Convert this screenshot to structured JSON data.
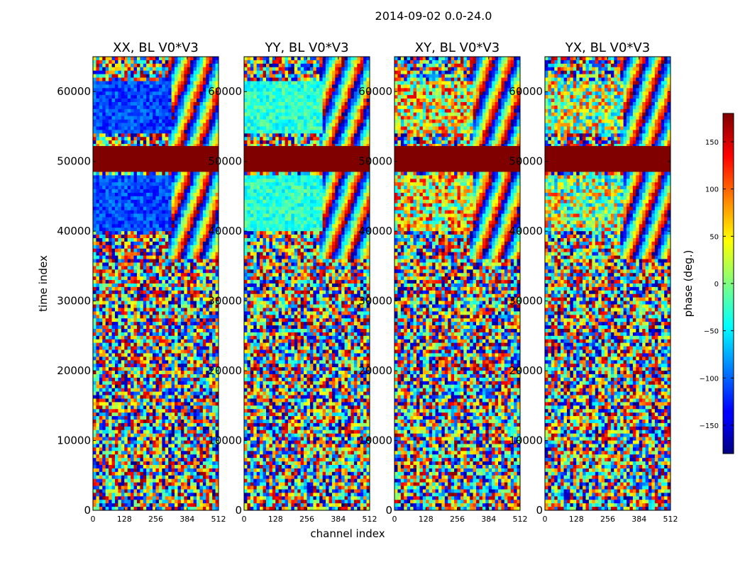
{
  "chart_data": {
    "type": "heatmap",
    "suptitle": "2014-09-02 0.0-24.0",
    "xlabel": "channel index",
    "ylabel": "time index",
    "xlim": [
      0,
      512
    ],
    "ylim": [
      0,
      65000
    ],
    "xticks": [
      0,
      128,
      256,
      384,
      512
    ],
    "yticks": [
      0,
      10000,
      20000,
      30000,
      40000,
      50000,
      60000
    ],
    "panels": [
      {
        "title": "XX, BL V0*V3",
        "block_phase": -110
      },
      {
        "title": "YY, BL V0*V3",
        "block_phase": -30
      },
      {
        "title": "XY, BL V0*V3",
        "block_phase": 40
      },
      {
        "title": "YX, BL V0*V3",
        "block_phase": 20
      }
    ],
    "flagged_band": {
      "t_start": 48500,
      "t_end": 52200,
      "phase": 180
    },
    "colorbar": {
      "label": "phase (deg.)",
      "range": [
        -180,
        180
      ],
      "ticks": [
        -150,
        -100,
        -50,
        0,
        50,
        100,
        150
      ],
      "colormap": "jet"
    }
  }
}
